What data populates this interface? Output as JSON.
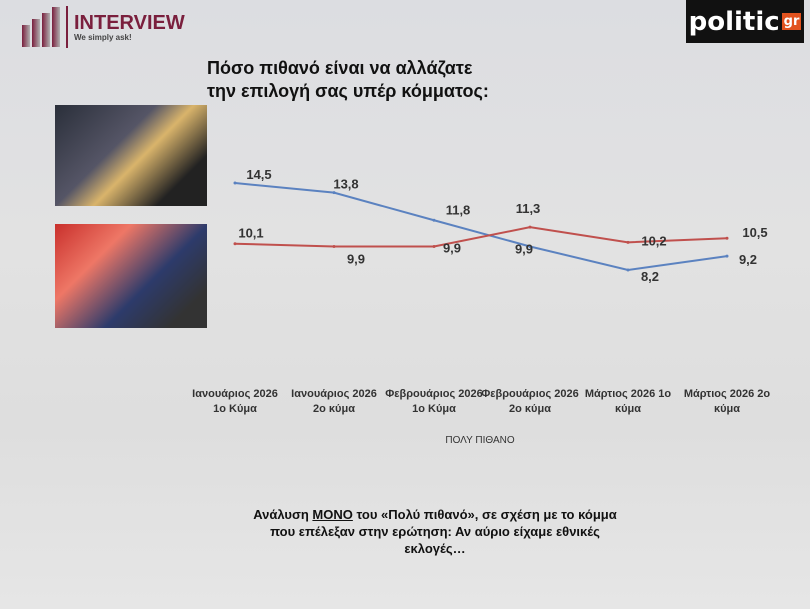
{
  "header": {
    "brand": "INTERVIEW",
    "tagline": "We simply ask!",
    "publisher": "politic",
    "publisher_suffix": "gr"
  },
  "chart_data": {
    "type": "line",
    "title": "Πόσο πιθανό είναι να αλλάζατε την επιλογή σας υπέρ κόμματος:",
    "title_lines": [
      "Πόσο πιθανό είναι να αλλάζατε",
      "την επιλογή σας υπέρ κόμματος:"
    ],
    "categories": [
      "Ιανουάριος  2026 1ο Κύμα",
      "Ιανουάριος  2026 2ο κύμα",
      "Φεβρουάριος 2026 1ο Κύμα",
      "Φεβρουάριος 2026 2ο κύμα",
      "Μάρτιος 2026 1ο κύμα",
      "Μάρτιος 2026  2ο κύμα"
    ],
    "xlabel": "ΠΟΛΥ ΠΙΘΑΝΟ",
    "series": [
      {
        "values": [
          14.5,
          13.8,
          11.8,
          9.9,
          8.2,
          9.2
        ],
        "labels": [
          "14,5",
          "13,8",
          "11,8",
          "9,9",
          "8,2",
          "9,2"
        ],
        "color": "#5b82c0"
      },
      {
        "values": [
          10.1,
          9.9,
          9.9,
          11.3,
          10.2,
          10.5
        ],
        "labels": [
          "10,1",
          "9,9",
          "9,9",
          "11,3",
          "10,2",
          "10,5"
        ],
        "color": "#c0504d"
      }
    ],
    "grid": false,
    "legend": "none"
  },
  "footer": {
    "before": "Ανάλυση ",
    "emph": "ΜΟΝΟ",
    "after": " του «Πολύ πιθανό», σε σχέση με το κόμμα που επέλεξαν στην ερώτηση: Αν αύριο είχαμε εθνικές εκλογές…"
  }
}
